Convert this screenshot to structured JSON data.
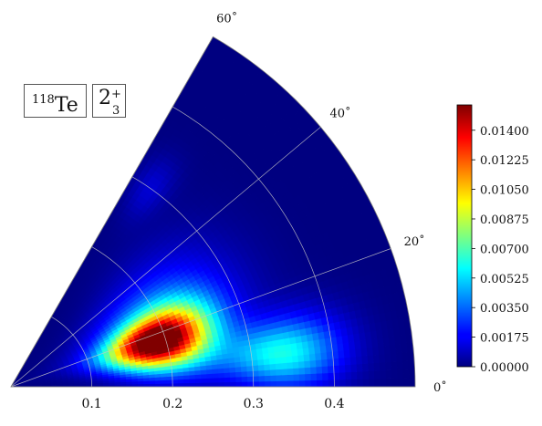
{
  "chart_data": {
    "type": "heatmap",
    "coordinate_system": "polar (beta, gamma)",
    "title": "",
    "nucleus": {
      "mass_number": "118",
      "symbol": "Te"
    },
    "state": {
      "base": "2",
      "superscript": "+",
      "subscript": "3"
    },
    "radial_axis": {
      "range": [
        0,
        0.5
      ],
      "ticks": [
        0.1,
        0.2,
        0.3,
        0.4
      ],
      "tick_labels": [
        "0.1",
        "0.2",
        "0.3",
        "0.4"
      ]
    },
    "angular_axis": {
      "range_deg": [
        0,
        60
      ],
      "ticks_deg": [
        0,
        20,
        40,
        60
      ],
      "tick_labels": [
        "0˚",
        "20˚",
        "40˚",
        "60˚"
      ]
    },
    "grid": true,
    "colormap": "jet",
    "colorbar": {
      "range": [
        0.0,
        0.0155
      ],
      "ticks": [
        0.0,
        0.00175,
        0.0035,
        0.00525,
        0.007,
        0.00875,
        0.0105,
        0.01225,
        0.014
      ],
      "tick_labels": [
        "0.00000",
        "0.00175",
        "0.00350",
        "0.00525",
        "0.00700",
        "0.00875",
        "0.01050",
        "0.01225",
        "0.01400"
      ]
    },
    "peaks": [
      {
        "beta": 0.19,
        "gamma_deg": 17,
        "value": 0.0155,
        "width_beta": 0.045,
        "width_gamma_deg": 7
      },
      {
        "beta": 0.34,
        "gamma_deg": 7,
        "value": 0.006,
        "width_beta": 0.05,
        "width_gamma_deg": 5
      },
      {
        "beta": 0.3,
        "gamma_deg": 55,
        "value": 0.0012,
        "width_beta": 0.03,
        "width_gamma_deg": 3
      }
    ],
    "ridge": {
      "beta": 0.2,
      "gamma_deg": 25,
      "value": 0.0035,
      "width_beta": 0.07,
      "width_gamma_deg": 12
    }
  }
}
